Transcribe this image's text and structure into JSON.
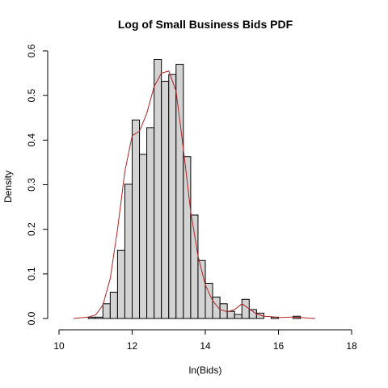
{
  "chart_data": {
    "type": "bar",
    "title": "Log of Small Business Bids PDF",
    "xlabel": "ln(Bids)",
    "ylabel": "Density",
    "xlim": [
      10,
      18
    ],
    "ylim": [
      0,
      0.6
    ],
    "x_ticks": [
      "10",
      "12",
      "14",
      "16",
      "18"
    ],
    "y_ticks": [
      "0.0",
      "0.1",
      "0.2",
      "0.3",
      "0.4",
      "0.5",
      "0.6"
    ],
    "bin_width": 0.2,
    "bins": [
      {
        "start": 10.8,
        "density": 0.003
      },
      {
        "start": 11.0,
        "density": 0.003
      },
      {
        "start": 11.2,
        "density": 0.033
      },
      {
        "start": 11.4,
        "density": 0.059
      },
      {
        "start": 11.6,
        "density": 0.153
      },
      {
        "start": 11.8,
        "density": 0.301
      },
      {
        "start": 12.0,
        "density": 0.445
      },
      {
        "start": 12.2,
        "density": 0.368
      },
      {
        "start": 12.4,
        "density": 0.428
      },
      {
        "start": 12.6,
        "density": 0.581
      },
      {
        "start": 12.8,
        "density": 0.532
      },
      {
        "start": 13.0,
        "density": 0.547
      },
      {
        "start": 13.2,
        "density": 0.57
      },
      {
        "start": 13.4,
        "density": 0.363
      },
      {
        "start": 13.6,
        "density": 0.232
      },
      {
        "start": 13.8,
        "density": 0.13
      },
      {
        "start": 14.0,
        "density": 0.079
      },
      {
        "start": 14.2,
        "density": 0.048
      },
      {
        "start": 14.4,
        "density": 0.033
      },
      {
        "start": 14.6,
        "density": 0.016
      },
      {
        "start": 14.8,
        "density": 0.009
      },
      {
        "start": 15.0,
        "density": 0.043
      },
      {
        "start": 15.2,
        "density": 0.02
      },
      {
        "start": 15.4,
        "density": 0.012
      },
      {
        "start": 15.6,
        "density": 0.0
      },
      {
        "start": 15.8,
        "density": 0.003
      },
      {
        "start": 16.0,
        "density": 0.0
      },
      {
        "start": 16.2,
        "density": 0.0
      },
      {
        "start": 16.4,
        "density": 0.005
      }
    ],
    "density_curve": {
      "x": [
        10.4,
        10.8,
        11.0,
        11.2,
        11.4,
        11.6,
        11.8,
        12.0,
        12.2,
        12.4,
        12.6,
        12.8,
        13.0,
        13.2,
        13.4,
        13.6,
        13.8,
        14.0,
        14.2,
        14.4,
        14.6,
        14.8,
        15.0,
        15.2,
        15.4,
        15.6,
        15.8,
        16.0,
        16.4,
        17.0
      ],
      "y": [
        0.0,
        0.003,
        0.008,
        0.03,
        0.09,
        0.2,
        0.33,
        0.41,
        0.42,
        0.46,
        0.52,
        0.55,
        0.555,
        0.51,
        0.38,
        0.24,
        0.14,
        0.075,
        0.04,
        0.02,
        0.015,
        0.02,
        0.033,
        0.022,
        0.01,
        0.005,
        0.004,
        0.002,
        0.003,
        0.0
      ]
    },
    "bar_fill": "#d3d3d3",
    "bar_stroke": "#000000",
    "curve_color": "#b22222",
    "grid": false,
    "legend": "none"
  }
}
